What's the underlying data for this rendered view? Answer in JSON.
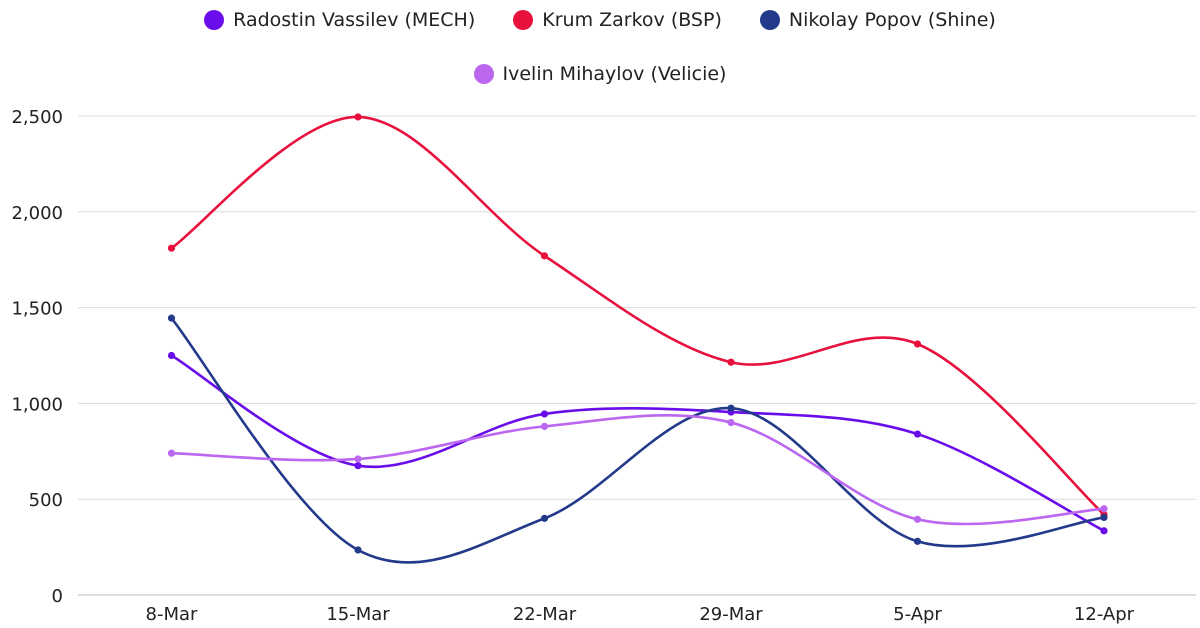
{
  "chart_data": {
    "type": "line",
    "title": "",
    "xlabel": "",
    "ylabel": "",
    "categories": [
      "8-Mar",
      "15-Mar",
      "22-Mar",
      "29-Mar",
      "5-Apr",
      "12-Apr"
    ],
    "ylim": [
      0,
      2500
    ],
    "yticks": [
      0,
      500,
      1000,
      1500,
      2000,
      2500
    ],
    "ytick_labels": [
      "0",
      "500",
      "1,000",
      "1,500",
      "2,000",
      "2,500"
    ],
    "grid": "horizontal",
    "legend_position": "top",
    "smooth": true,
    "series": [
      {
        "name": "Radostin Vassilev (MECH)",
        "color": "#6A0DEB",
        "values": [
          1250,
          675,
          945,
          955,
          840,
          335
        ]
      },
      {
        "name": "Krum Zarkov (BSP)",
        "color": "#E8113D",
        "values": [
          1810,
          2495,
          1770,
          1215,
          1310,
          420
        ]
      },
      {
        "name": "Nikolay Popov (Shine)",
        "color": "#233A8B",
        "values": [
          1445,
          235,
          400,
          975,
          280,
          405
        ]
      },
      {
        "name": "Ivelin Mihaylov (Velicie)",
        "color": "#BC67F0",
        "values": [
          740,
          710,
          880,
          900,
          395,
          450
        ]
      }
    ]
  }
}
